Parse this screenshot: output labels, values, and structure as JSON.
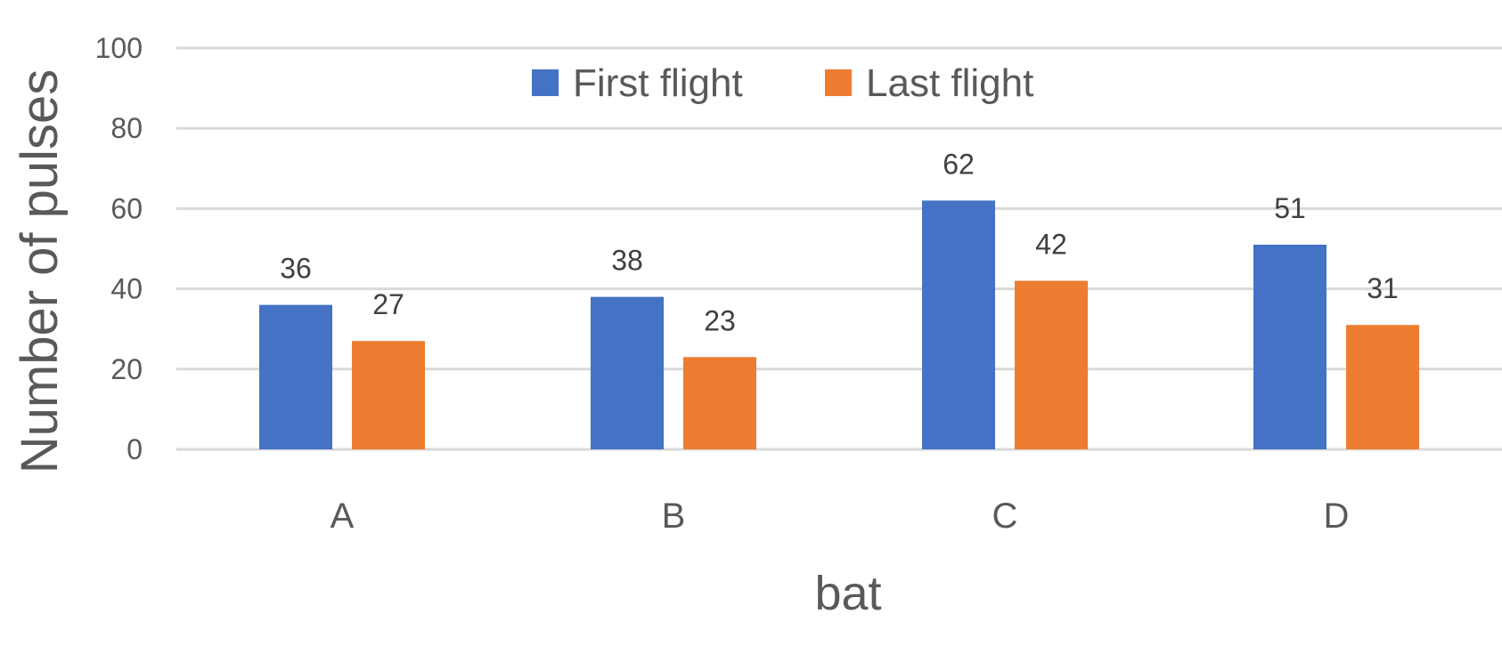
{
  "chart_data": {
    "type": "bar",
    "categories": [
      "A",
      "B",
      "C",
      "D"
    ],
    "series": [
      {
        "name": "First flight",
        "values": [
          36,
          38,
          62,
          51
        ],
        "color": "#4472C4"
      },
      {
        "name": "Last flight",
        "values": [
          27,
          23,
          42,
          31
        ],
        "color": "#ED7D31"
      }
    ],
    "title": "",
    "xlabel": "bat",
    "ylabel": "Number of pulses",
    "ylim": [
      0,
      100
    ],
    "yticks": [
      0,
      20,
      40,
      60,
      80,
      100
    ],
    "grid": true,
    "grid_color": "#D9D9D9",
    "legend_position": "top-center",
    "data_labels": true
  }
}
